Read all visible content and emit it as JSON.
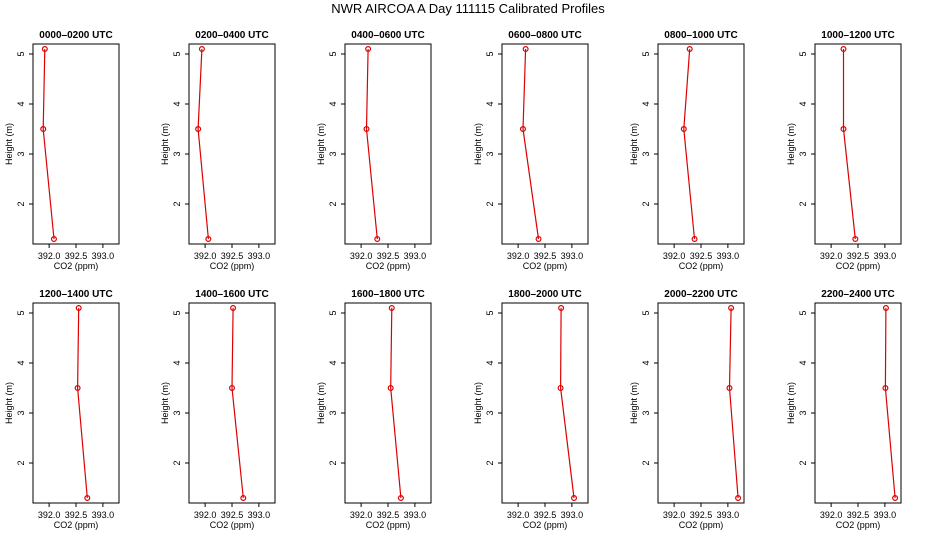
{
  "main_title": "NWR AIRCOA A  Day 111115  Calibrated Profiles",
  "colors": {
    "series": "#dd0000",
    "axis": "#000000"
  },
  "chart_data": [
    {
      "type": "line",
      "title": "0000–0200 UTC",
      "xlabel": "CO2 (ppm)",
      "ylabel": "Height (m)",
      "xlim": [
        391.7,
        393.3
      ],
      "ylim": [
        1.2,
        5.2
      ],
      "xticks": [
        "392.0",
        "392.5",
        "393.0"
      ],
      "yticks": [
        "2",
        "3",
        "4",
        "5"
      ],
      "x": [
        391.92,
        391.89,
        392.09
      ],
      "y": [
        5.1,
        3.5,
        1.3
      ]
    },
    {
      "type": "line",
      "title": "0200–0400 UTC",
      "xlabel": "CO2 (ppm)",
      "ylabel": "Height (m)",
      "xlim": [
        391.7,
        393.3
      ],
      "ylim": [
        1.2,
        5.2
      ],
      "xticks": [
        "392.0",
        "392.5",
        "393.0"
      ],
      "yticks": [
        "2",
        "3",
        "4",
        "5"
      ],
      "x": [
        391.94,
        391.87,
        392.06
      ],
      "y": [
        5.1,
        3.5,
        1.3
      ]
    },
    {
      "type": "line",
      "title": "0400–0600 UTC",
      "xlabel": "CO2 (ppm)",
      "ylabel": "Height (m)",
      "xlim": [
        391.7,
        393.3
      ],
      "ylim": [
        1.2,
        5.2
      ],
      "xticks": [
        "392.0",
        "392.5",
        "393.0"
      ],
      "yticks": [
        "2",
        "3",
        "4",
        "5"
      ],
      "x": [
        392.13,
        392.1,
        392.3
      ],
      "y": [
        5.1,
        3.5,
        1.3
      ]
    },
    {
      "type": "line",
      "title": "0600–0800 UTC",
      "xlabel": "CO2 (ppm)",
      "ylabel": "Height (m)",
      "xlim": [
        391.7,
        393.3
      ],
      "ylim": [
        1.2,
        5.2
      ],
      "xticks": [
        "392.0",
        "392.5",
        "393.0"
      ],
      "yticks": [
        "2",
        "3",
        "4",
        "5"
      ],
      "x": [
        392.14,
        392.09,
        392.38
      ],
      "y": [
        5.1,
        3.5,
        1.3
      ]
    },
    {
      "type": "line",
      "title": "0800–1000 UTC",
      "xlabel": "CO2 (ppm)",
      "ylabel": "Height (m)",
      "xlim": [
        391.7,
        393.3
      ],
      "ylim": [
        1.2,
        5.2
      ],
      "xticks": [
        "392.0",
        "392.5",
        "393.0"
      ],
      "yticks": [
        "2",
        "3",
        "4",
        "5"
      ],
      "x": [
        392.29,
        392.18,
        392.38
      ],
      "y": [
        5.1,
        3.5,
        1.3
      ]
    },
    {
      "type": "line",
      "title": "1000–1200 UTC",
      "xlabel": "CO2 (ppm)",
      "ylabel": "Height (m)",
      "xlim": [
        391.7,
        393.3
      ],
      "ylim": [
        1.2,
        5.2
      ],
      "xticks": [
        "392.0",
        "392.5",
        "393.0"
      ],
      "yticks": [
        "2",
        "3",
        "4",
        "5"
      ],
      "x": [
        392.23,
        392.23,
        392.45
      ],
      "y": [
        5.1,
        3.5,
        1.3
      ]
    },
    {
      "type": "line",
      "title": "1200–1400 UTC",
      "xlabel": "CO2 (ppm)",
      "ylabel": "Height (m)",
      "xlim": [
        391.7,
        393.3
      ],
      "ylim": [
        1.2,
        5.2
      ],
      "xticks": [
        "392.0",
        "392.5",
        "393.0"
      ],
      "yticks": [
        "2",
        "3",
        "4",
        "5"
      ],
      "x": [
        392.55,
        392.53,
        392.71
      ],
      "y": [
        5.1,
        3.5,
        1.3
      ]
    },
    {
      "type": "line",
      "title": "1400–1600 UTC",
      "xlabel": "CO2 (ppm)",
      "ylabel": "Height (m)",
      "xlim": [
        391.7,
        393.3
      ],
      "ylim": [
        1.2,
        5.2
      ],
      "xticks": [
        "392.0",
        "392.5",
        "393.0"
      ],
      "yticks": [
        "2",
        "3",
        "4",
        "5"
      ],
      "x": [
        392.52,
        392.5,
        392.71
      ],
      "y": [
        5.1,
        3.5,
        1.3
      ]
    },
    {
      "type": "line",
      "title": "1600–1800 UTC",
      "xlabel": "CO2 (ppm)",
      "ylabel": "Height (m)",
      "xlim": [
        391.7,
        393.3
      ],
      "ylim": [
        1.2,
        5.2
      ],
      "xticks": [
        "392.0",
        "392.5",
        "393.0"
      ],
      "yticks": [
        "2",
        "3",
        "4",
        "5"
      ],
      "x": [
        392.57,
        392.55,
        392.74
      ],
      "y": [
        5.1,
        3.5,
        1.3
      ]
    },
    {
      "type": "line",
      "title": "1800–2000 UTC",
      "xlabel": "CO2 (ppm)",
      "ylabel": "Height (m)",
      "xlim": [
        391.7,
        393.3
      ],
      "ylim": [
        1.2,
        5.2
      ],
      "xticks": [
        "392.0",
        "392.5",
        "393.0"
      ],
      "yticks": [
        "2",
        "3",
        "4",
        "5"
      ],
      "x": [
        392.8,
        392.79,
        393.04
      ],
      "y": [
        5.1,
        3.5,
        1.3
      ]
    },
    {
      "type": "line",
      "title": "2000–2200 UTC",
      "xlabel": "CO2 (ppm)",
      "ylabel": "Height (m)",
      "xlim": [
        391.7,
        393.3
      ],
      "ylim": [
        1.2,
        5.2
      ],
      "xticks": [
        "392.0",
        "392.5",
        "393.0"
      ],
      "yticks": [
        "2",
        "3",
        "4",
        "5"
      ],
      "x": [
        393.06,
        393.03,
        393.19
      ],
      "y": [
        5.1,
        3.5,
        1.3
      ]
    },
    {
      "type": "line",
      "title": "2200–2400 UTC",
      "xlabel": "CO2 (ppm)",
      "ylabel": "Height (m)",
      "xlim": [
        391.7,
        393.3
      ],
      "ylim": [
        1.2,
        5.2
      ],
      "xticks": [
        "392.0",
        "392.5",
        "393.0"
      ],
      "yticks": [
        "2",
        "3",
        "4",
        "5"
      ],
      "x": [
        393.02,
        393.01,
        393.19
      ],
      "y": [
        5.1,
        3.5,
        1.3
      ]
    }
  ]
}
